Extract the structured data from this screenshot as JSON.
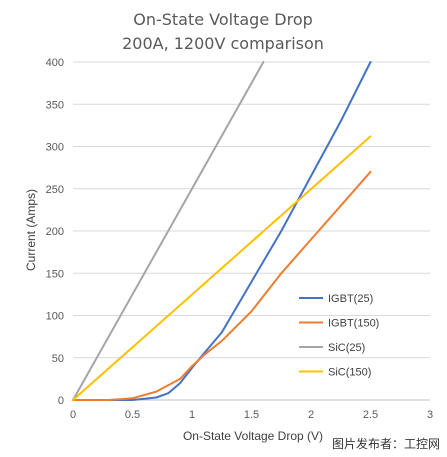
{
  "chart_data": {
    "type": "line",
    "title": "On-State Voltage Drop",
    "subtitle": "200A, 1200V comparison",
    "xlabel": "On-State Voltage Drop (V)",
    "ylabel": "Current (Amps)",
    "xlim": [
      0,
      3
    ],
    "ylim": [
      0,
      400
    ],
    "x_ticks": [
      "0",
      "0.5",
      "1",
      "1.5",
      "2",
      "2.5",
      "3"
    ],
    "y_ticks": [
      "0",
      "50",
      "100",
      "150",
      "200",
      "250",
      "300",
      "350",
      "400"
    ],
    "grid": "horizontal",
    "legend_position": "right",
    "series": [
      {
        "name": "IGBT(25)",
        "color": "#4472C4",
        "x": [
          0,
          0.5,
          0.7,
          0.8,
          0.9,
          1.0,
          1.1,
          1.25,
          1.5,
          1.75,
          2.0,
          2.25,
          2.5
        ],
        "y": [
          0,
          0,
          3,
          8,
          20,
          38,
          55,
          80,
          140,
          200,
          265,
          330,
          400
        ]
      },
      {
        "name": "IGBT(150)",
        "color": "#ED7D31",
        "x": [
          0,
          0.3,
          0.5,
          0.7,
          0.9,
          1.0,
          1.1,
          1.25,
          1.5,
          1.75,
          2.0,
          2.25,
          2.5
        ],
        "y": [
          0,
          0,
          2,
          10,
          25,
          40,
          53,
          70,
          105,
          150,
          190,
          230,
          270
        ]
      },
      {
        "name": "SiC(25)",
        "color": "#A5A5A5",
        "x": [
          0,
          1.6
        ],
        "y": [
          0,
          400
        ]
      },
      {
        "name": "SiC(150)",
        "color": "#FFC000",
        "x": [
          0,
          2.5
        ],
        "y": [
          0,
          312
        ]
      }
    ]
  },
  "watermark": "图片发布者：工控网"
}
